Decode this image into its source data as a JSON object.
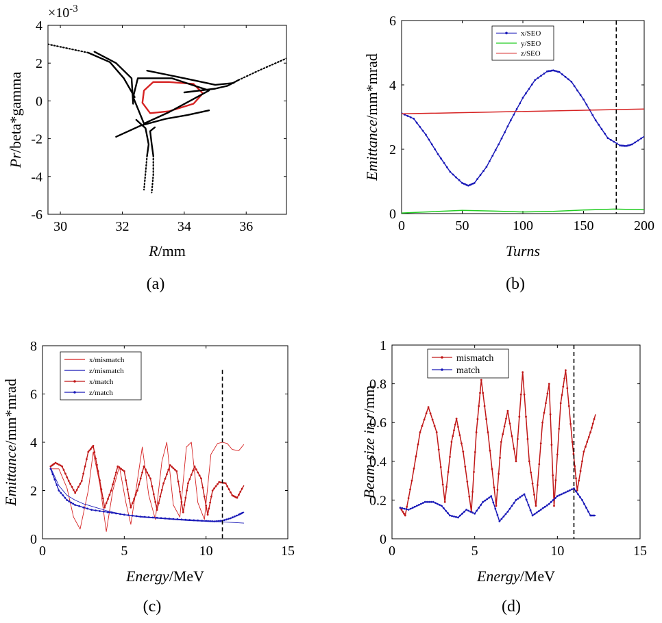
{
  "chart_data": [
    {
      "id": "a",
      "type": "scatter",
      "caption": "(a)",
      "xlabel": {
        "italic": "R",
        "rest": "/mm"
      },
      "ylabel": {
        "italic": "Pr",
        "rest": "/beta*gamma"
      },
      "exponent": "×10",
      "exponent_power": "-3",
      "xlim": [
        29.6,
        37.3
      ],
      "ylim": [
        -6,
        4
      ],
      "xticks": [
        30,
        32,
        34,
        36
      ],
      "yticks": [
        4,
        2,
        0,
        -2,
        -4,
        -6
      ],
      "tick_labels_x": [
        "30",
        "32",
        "34",
        "36"
      ],
      "tick_labels_y": [
        "4",
        "2",
        "0",
        "-2",
        "-4",
        "-6"
      ],
      "colors": {
        "closed_orbit": "#d62222",
        "separatrix": "#000000"
      },
      "series": [
        {
          "name": "closed-orbit",
          "color": "#d62222",
          "style": "solid",
          "x": [
            33.5,
            34.3,
            34.6,
            34.3,
            33.5,
            32.9,
            32.65,
            32.7,
            33.0,
            33.5
          ],
          "y": [
            1.0,
            0.9,
            0.4,
            -0.15,
            -0.55,
            -0.65,
            -0.1,
            0.55,
            1.0,
            1.0
          ]
        },
        {
          "name": "inner-triangle",
          "color": "#000000",
          "style": "solid",
          "x": [
            32.5,
            33.6,
            34.8,
            34.3,
            33.5,
            32.7,
            32.35,
            32.5
          ],
          "y": [
            1.2,
            1.2,
            0.55,
            0.1,
            -0.6,
            -1.2,
            0.2,
            1.2
          ]
        },
        {
          "name": "branch-upper-left",
          "color": "#000000",
          "style": "solid",
          "x": [
            30.9,
            31.6,
            32.05,
            32.4
          ],
          "y": [
            2.55,
            2.05,
            1.2,
            0.2
          ]
        },
        {
          "name": "branch-upper-left-2",
          "color": "#000000",
          "style": "solid",
          "x": [
            31.1,
            31.8,
            32.3,
            32.35
          ],
          "y": [
            2.6,
            2.0,
            1.2,
            -0.15
          ]
        },
        {
          "name": "branch-upper-right",
          "color": "#000000",
          "style": "solid",
          "x": [
            32.8,
            34.0,
            35.0,
            35.6
          ],
          "y": [
            1.6,
            1.2,
            0.85,
            0.95
          ]
        },
        {
          "name": "branch-right",
          "color": "#000000",
          "style": "solid",
          "x": [
            34.0,
            35.0,
            35.4,
            35.75
          ],
          "y": [
            0.45,
            0.65,
            0.8,
            1.1
          ]
        },
        {
          "name": "branch-lower-left",
          "color": "#000000",
          "style": "solid",
          "x": [
            31.8,
            32.6,
            33.4,
            34.1,
            34.8
          ],
          "y": [
            -1.9,
            -1.3,
            -0.95,
            -0.75,
            -0.5
          ]
        },
        {
          "name": "branch-down-1",
          "color": "#000000",
          "style": "solid",
          "x": [
            32.45,
            32.75,
            32.85,
            32.8
          ],
          "y": [
            -1.0,
            -1.45,
            -2.3,
            -2.9
          ]
        },
        {
          "name": "branch-down-2",
          "color": "#000000",
          "style": "solid",
          "x": [
            33.05,
            32.9,
            32.95,
            33.0
          ],
          "y": [
            -1.4,
            -1.6,
            -2.3,
            -2.9
          ]
        },
        {
          "name": "tail-upper-left",
          "color": "#000000",
          "style": "dotted",
          "x": [
            29.6,
            30.9
          ],
          "y": [
            3.0,
            2.55
          ]
        },
        {
          "name": "tail-right",
          "color": "#000000",
          "style": "dotted",
          "x": [
            35.75,
            36.4,
            37.3
          ],
          "y": [
            1.1,
            1.6,
            2.25
          ]
        },
        {
          "name": "tail-down",
          "color": "#000000",
          "style": "dotted",
          "x": [
            32.8,
            32.75,
            32.7
          ],
          "y": [
            -2.9,
            -3.8,
            -4.7
          ]
        },
        {
          "name": "tail-down-2",
          "color": "#000000",
          "style": "dotted",
          "x": [
            33.0,
            33.0,
            32.95
          ],
          "y": [
            -2.9,
            -3.9,
            -4.85
          ]
        }
      ]
    },
    {
      "id": "b",
      "type": "line",
      "caption": "(b)",
      "xlabel": {
        "italic": "Turns",
        "rest": ""
      },
      "ylabel": {
        "italic": "Emittance",
        "rest": "/mm*mrad"
      },
      "xlim": [
        0,
        200
      ],
      "ylim": [
        0,
        6
      ],
      "xticks": [
        0,
        50,
        100,
        150,
        200
      ],
      "yticks": [
        0,
        2,
        4,
        6
      ],
      "tick_labels_x": [
        "0",
        "50",
        "100",
        "150",
        "200"
      ],
      "tick_labels_y": [
        "0",
        "2",
        "4",
        "6"
      ],
      "vline": 177,
      "legend": [
        "x/SEO",
        "y/SEO",
        "z/SEO"
      ],
      "series": [
        {
          "name": "x/SEO",
          "color": "#1a1ab8",
          "marker": true,
          "x": [
            0,
            10,
            20,
            30,
            40,
            50,
            55,
            60,
            70,
            80,
            90,
            100,
            110,
            120,
            125,
            130,
            140,
            150,
            160,
            170,
            180,
            185,
            190,
            200
          ],
          "y": [
            3.12,
            2.95,
            2.45,
            1.85,
            1.3,
            0.95,
            0.87,
            0.95,
            1.45,
            2.15,
            2.9,
            3.6,
            4.15,
            4.42,
            4.45,
            4.4,
            4.1,
            3.55,
            2.9,
            2.35,
            2.12,
            2.1,
            2.15,
            2.4
          ]
        },
        {
          "name": "y/SEO",
          "color": "#22cc22",
          "marker": false,
          "x": [
            0,
            25,
            50,
            75,
            100,
            125,
            150,
            175,
            200
          ],
          "y": [
            0.02,
            0.06,
            0.1,
            0.08,
            0.05,
            0.07,
            0.11,
            0.14,
            0.12
          ]
        },
        {
          "name": "z/SEO",
          "color": "#d62222",
          "marker": false,
          "x": [
            0,
            200
          ],
          "y": [
            3.1,
            3.25
          ]
        }
      ]
    },
    {
      "id": "c",
      "type": "line",
      "caption": "(c)",
      "xlabel": {
        "italic": "Energy",
        "rest": "/MeV"
      },
      "ylabel": {
        "italic": "Emittance",
        "rest": "/mm*mrad"
      },
      "xlim": [
        0,
        15
      ],
      "ylim": [
        0,
        8
      ],
      "xticks": [
        0,
        5,
        10,
        15
      ],
      "yticks": [
        0,
        2,
        4,
        6,
        8
      ],
      "tick_labels_x": [
        "0",
        "5",
        "10",
        "15"
      ],
      "tick_labels_y": [
        "0",
        "2",
        "4",
        "6",
        "8"
      ],
      "vline": 11,
      "vline_top": 7,
      "legend": [
        "x/mismatch",
        "z/mismatch",
        "x/match",
        "z/match"
      ],
      "series": [
        {
          "name": "x/mismatch",
          "color": "#d62222",
          "marker": false,
          "width": 0.9,
          "x": [
            0.5,
            1.0,
            1.5,
            1.9,
            2.3,
            2.8,
            3.1,
            3.5,
            3.9,
            4.3,
            4.7,
            5.1,
            5.4,
            5.8,
            6.1,
            6.5,
            6.9,
            7.3,
            7.6,
            8.0,
            8.4,
            8.8,
            9.1,
            9.5,
            9.9,
            10.3,
            10.7,
            11.0,
            11.3,
            11.6,
            12.0,
            12.3
          ],
          "y": [
            2.9,
            2.9,
            2.1,
            0.9,
            0.4,
            2.0,
            3.6,
            2.3,
            0.3,
            2.0,
            3.0,
            1.5,
            0.6,
            2.4,
            3.8,
            1.8,
            0.8,
            3.2,
            4.0,
            1.4,
            0.9,
            3.8,
            4.0,
            1.5,
            0.8,
            3.5,
            3.95,
            4.0,
            3.95,
            3.7,
            3.65,
            3.9
          ]
        },
        {
          "name": "z/mismatch",
          "color": "#1a1ab8",
          "marker": false,
          "width": 0.9,
          "x": [
            0.5,
            1.0,
            1.5,
            2.0,
            2.5,
            3.0,
            4.0,
            5.0,
            6.0,
            7.0,
            8.0,
            9.0,
            10.0,
            11.0,
            12.3
          ],
          "y": [
            2.95,
            2.2,
            1.8,
            1.6,
            1.45,
            1.35,
            1.15,
            1.0,
            0.9,
            0.85,
            0.8,
            0.75,
            0.72,
            0.7,
            0.65
          ]
        },
        {
          "name": "x/match",
          "color": "#c01818",
          "marker": true,
          "width": 1.4,
          "x": [
            0.5,
            0.8,
            1.2,
            1.6,
            2.0,
            2.4,
            2.8,
            3.1,
            3.4,
            3.8,
            4.2,
            4.6,
            5.0,
            5.4,
            5.8,
            6.2,
            6.6,
            7.0,
            7.4,
            7.8,
            8.2,
            8.6,
            8.9,
            9.3,
            9.7,
            10.1,
            10.4,
            10.8,
            11.2,
            11.6,
            11.9,
            12.3
          ],
          "y": [
            3.0,
            3.15,
            3.0,
            2.4,
            1.9,
            2.4,
            3.6,
            3.85,
            2.8,
            1.3,
            2.0,
            3.0,
            2.8,
            1.3,
            2.0,
            3.0,
            2.5,
            1.2,
            2.3,
            3.05,
            2.8,
            1.1,
            2.3,
            3.0,
            2.5,
            1.0,
            2.0,
            2.35,
            2.3,
            1.8,
            1.7,
            2.2
          ]
        },
        {
          "name": "z/match",
          "color": "#1a1ab8",
          "marker": true,
          "width": 1.4,
          "x": [
            0.5,
            1.0,
            1.5,
            2.0,
            3.0,
            4.0,
            5.0,
            6.0,
            7.0,
            8.0,
            9.0,
            10.0,
            10.5,
            11.0,
            11.5,
            12.0,
            12.3
          ],
          "y": [
            2.9,
            2.0,
            1.6,
            1.4,
            1.2,
            1.1,
            1.0,
            0.92,
            0.87,
            0.82,
            0.78,
            0.74,
            0.72,
            0.75,
            0.85,
            1.0,
            1.1
          ]
        }
      ]
    },
    {
      "id": "d",
      "type": "line",
      "caption": "(d)",
      "xlabel": {
        "italic": "Energy",
        "rest": "/MeV"
      },
      "ylabel": {
        "italic": "Beam size in ",
        "italic2": "r",
        "rest": "/mm"
      },
      "xlim": [
        0,
        15
      ],
      "ylim": [
        0,
        1
      ],
      "xticks": [
        0,
        5,
        10,
        15
      ],
      "yticks": [
        0,
        0.2,
        0.4,
        0.6,
        0.8,
        1
      ],
      "tick_labels_x": [
        "0",
        "5",
        "10",
        "15"
      ],
      "tick_labels_y": [
        "0",
        "0.2",
        "0.4",
        "0.6",
        "0.8",
        "1"
      ],
      "vline": 11,
      "legend": [
        "mismatch",
        "match"
      ],
      "series": [
        {
          "name": "mismatch",
          "color": "#c01818",
          "marker": true,
          "x": [
            0.5,
            0.8,
            1.2,
            1.7,
            2.2,
            2.7,
            3.2,
            3.6,
            3.9,
            4.3,
            4.8,
            5.1,
            5.4,
            5.8,
            6.3,
            6.6,
            7.0,
            7.5,
            7.9,
            8.3,
            8.7,
            9.1,
            9.5,
            9.8,
            10.2,
            10.5,
            10.9,
            11.2,
            11.6,
            12.0,
            12.3
          ],
          "y": [
            0.16,
            0.12,
            0.3,
            0.55,
            0.68,
            0.55,
            0.19,
            0.5,
            0.62,
            0.45,
            0.14,
            0.55,
            0.82,
            0.55,
            0.17,
            0.5,
            0.66,
            0.4,
            0.86,
            0.4,
            0.17,
            0.6,
            0.8,
            0.17,
            0.7,
            0.87,
            0.5,
            0.25,
            0.45,
            0.55,
            0.64
          ]
        },
        {
          "name": "match",
          "color": "#1a1ab8",
          "marker": true,
          "x": [
            0.5,
            1.0,
            1.5,
            2.0,
            2.5,
            3.0,
            3.5,
            4.0,
            4.5,
            5.0,
            5.5,
            6.0,
            6.5,
            7.0,
            7.5,
            8.0,
            8.5,
            9.0,
            9.5,
            10.0,
            10.5,
            11.0,
            11.5,
            12.0,
            12.3
          ],
          "y": [
            0.16,
            0.15,
            0.17,
            0.19,
            0.19,
            0.17,
            0.12,
            0.11,
            0.15,
            0.13,
            0.19,
            0.22,
            0.09,
            0.14,
            0.2,
            0.23,
            0.12,
            0.15,
            0.18,
            0.22,
            0.24,
            0.26,
            0.2,
            0.12,
            0.12
          ]
        }
      ]
    }
  ]
}
